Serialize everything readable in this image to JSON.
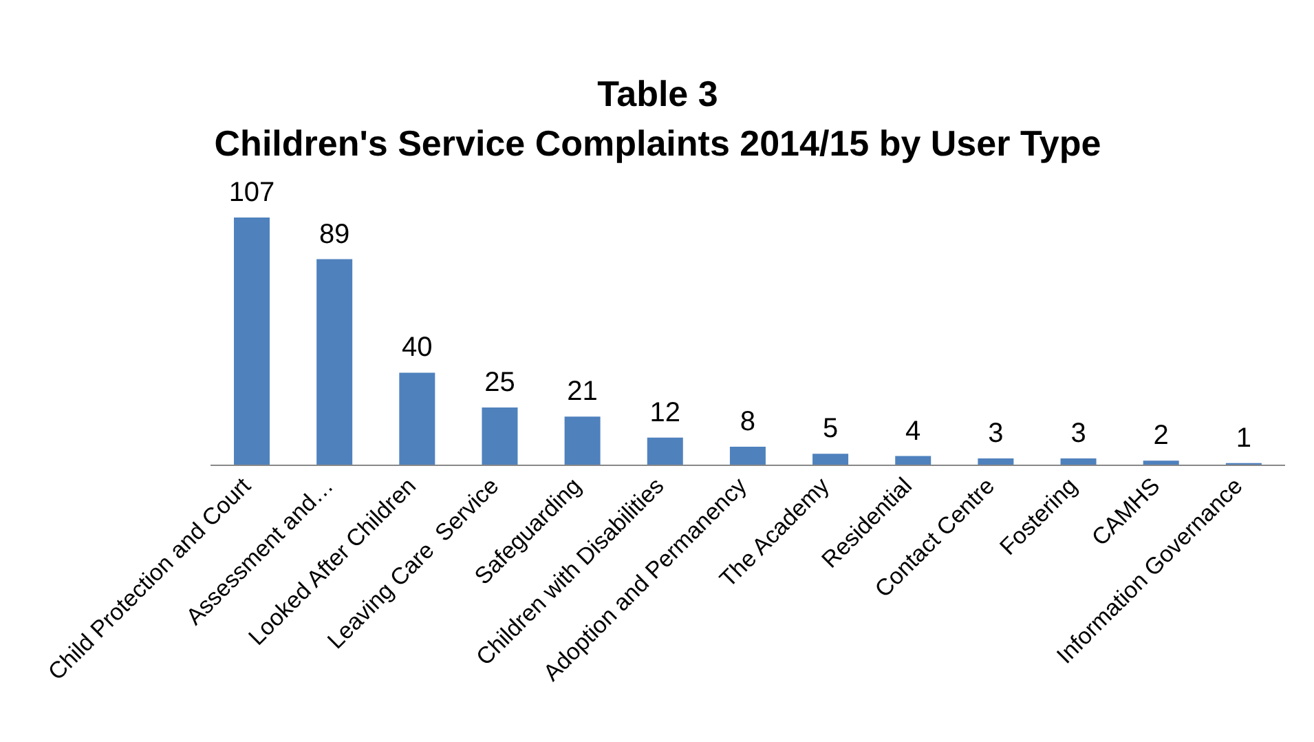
{
  "chart_data": {
    "type": "bar",
    "title": "Table 3",
    "subtitle": "Children's Service Complaints 2014/15 by User Type",
    "categories": [
      "Child Protection and Court",
      "Assessment and…",
      "Looked After Children",
      "Leaving Care  Service",
      "Safeguarding",
      "Children with Disabilities",
      "Adoption and Permanency",
      "The Academy",
      "Residential",
      "Contact Centre",
      "Fostering",
      "CAMHS",
      "Information Governance"
    ],
    "values": [
      107,
      89,
      40,
      25,
      21,
      12,
      8,
      5,
      4,
      3,
      3,
      2,
      1
    ],
    "color": "#4f81bd",
    "data_labels": true,
    "grid": false,
    "tick_labels": "x"
  }
}
